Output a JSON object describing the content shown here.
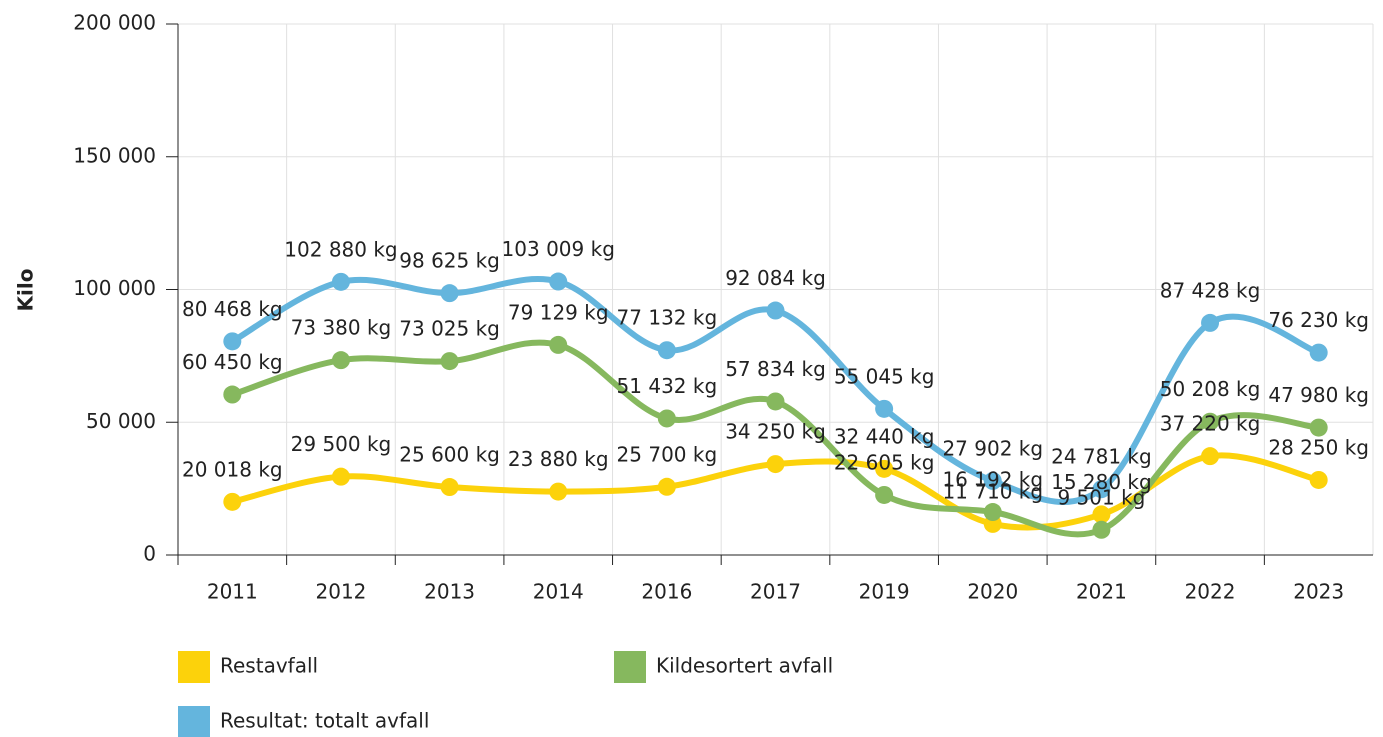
{
  "chart_data": {
    "type": "line",
    "y_label": "Kilo",
    "categories": [
      "2011",
      "2012",
      "2013",
      "2014",
      "2016",
      "2017",
      "2019",
      "2020",
      "2021",
      "2022",
      "2023"
    ],
    "series": [
      {
        "name": "Restavfall",
        "color": "#fcd20b",
        "values": [
          20018,
          29500,
          25600,
          23880,
          25700,
          34250,
          32440,
          11710,
          15280,
          37220,
          28250
        ],
        "value_labels": [
          "20 018 kg",
          "29 500 kg",
          "25 600 kg",
          "23 880 kg",
          "25 700 kg",
          "34 250 kg",
          "32 440 kg",
          "11 710 kg",
          "15 280 kg",
          "37 220 kg",
          "28 250 kg"
        ]
      },
      {
        "name": "Kildesortert avfall",
        "color": "#86b85e",
        "values": [
          60450,
          73380,
          73025,
          79129,
          51432,
          57834,
          22605,
          16192,
          9501,
          50208,
          47980
        ],
        "value_labels": [
          "60 450 kg",
          "73 380 kg",
          "73 025 kg",
          "79 129 kg",
          "51 432 kg",
          "57 834 kg",
          "22 605 kg",
          "16 192 kg",
          "9 501 kg",
          "50 208 kg",
          "47 980 kg"
        ]
      },
      {
        "name": "Resultat: totalt avfall",
        "color": "#64b5dd",
        "values": [
          80468,
          102880,
          98625,
          103009,
          77132,
          92084,
          55045,
          27902,
          24781,
          87428,
          76230
        ],
        "value_labels": [
          "80 468 kg",
          "102 880 kg",
          "98 625 kg",
          "103 009 kg",
          "77 132 kg",
          "92 084 kg",
          "55 045 kg",
          "27 902 kg",
          "24 781 kg",
          "87 428 kg",
          "76 230 kg"
        ]
      }
    ],
    "ylim": [
      0,
      200000
    ],
    "yticks": [
      0,
      {
        "value": 50000,
        "label": "50 000"
      },
      {
        "value": 100000,
        "label": "100 000"
      },
      {
        "value": 150000,
        "label": "150 000"
      },
      {
        "value": 200000,
        "label": "200 000"
      }
    ],
    "grid": true
  }
}
